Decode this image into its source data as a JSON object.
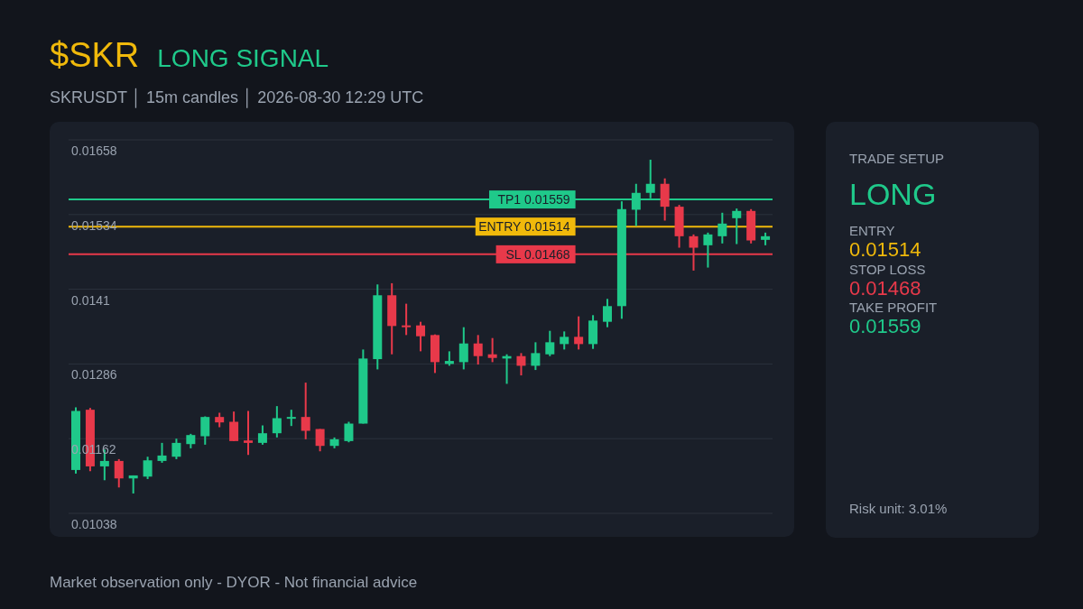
{
  "chart_data": [
    {
      "type": "candlestick",
      "title": "$SKR",
      "subtitle": "SKRUSDT │ 15m candles │ 2026-08-30 12:29 UTC",
      "annotations": [
        "LONG SIGNAL",
        "Market observation only - DYOR - Not financial advice"
      ],
      "categories": [
        null,
        null,
        null,
        null,
        null,
        null,
        null,
        null,
        null,
        null,
        null,
        null,
        null,
        null,
        null,
        null,
        null,
        null,
        null,
        null,
        null,
        null,
        null,
        null,
        null,
        null,
        null,
        null,
        null,
        null,
        null,
        null,
        null,
        null,
        null,
        null,
        null,
        null,
        null,
        null,
        null,
        null,
        null,
        null,
        null,
        null,
        null,
        null,
        null
      ],
      "ohlc": [
        [
          0.0111,
          0.01214,
          0.01104,
          0.01208
        ],
        [
          0.0121,
          0.01213,
          0.01108,
          0.01116
        ],
        [
          0.01116,
          0.01144,
          0.01093,
          0.01125
        ],
        [
          0.01125,
          0.01128,
          0.01081,
          0.01096
        ],
        [
          0.01096,
          0.01101,
          0.01071,
          0.01101
        ],
        [
          0.01099,
          0.01132,
          0.01095,
          0.01126
        ],
        [
          0.01125,
          0.01155,
          0.01122,
          0.01134
        ],
        [
          0.01132,
          0.01162,
          0.01128,
          0.01155
        ],
        [
          0.01153,
          0.0117,
          0.01146,
          0.01168
        ],
        [
          0.01166,
          0.01199,
          0.01152,
          0.01198
        ],
        [
          0.01198,
          0.01205,
          0.01181,
          0.01189
        ],
        [
          0.0119,
          0.01207,
          0.01158,
          0.01158
        ],
        [
          0.01159,
          0.01208,
          0.01135,
          0.01155
        ],
        [
          0.01155,
          0.01184,
          0.01152,
          0.01171
        ],
        [
          0.01171,
          0.01216,
          0.01164,
          0.01196
        ],
        [
          0.01195,
          0.0121,
          0.01183,
          0.01198
        ],
        [
          0.01198,
          0.01255,
          0.01161,
          0.01175
        ],
        [
          0.01178,
          0.01178,
          0.01141,
          0.0115
        ],
        [
          0.0115,
          0.01164,
          0.01146,
          0.01161
        ],
        [
          0.01158,
          0.0119,
          0.01156,
          0.01187
        ],
        [
          0.01187,
          0.0131,
          0.01187,
          0.01295
        ],
        [
          0.01294,
          0.01418,
          0.01277,
          0.014
        ],
        [
          0.014,
          0.0142,
          0.01302,
          0.01349
        ],
        [
          0.0135,
          0.01386,
          0.01334,
          0.01347
        ],
        [
          0.0135,
          0.01356,
          0.01307,
          0.01332
        ],
        [
          0.01334,
          0.01335,
          0.01271,
          0.01289
        ],
        [
          0.01286,
          0.01307,
          0.01283,
          0.01291
        ],
        [
          0.01289,
          0.01347,
          0.01277,
          0.0132
        ],
        [
          0.0132,
          0.01334,
          0.01285,
          0.01299
        ],
        [
          0.01302,
          0.01329,
          0.01289,
          0.01296
        ],
        [
          0.01295,
          0.01302,
          0.01253,
          0.01299
        ],
        [
          0.01299,
          0.01304,
          0.01267,
          0.01283
        ],
        [
          0.01283,
          0.01322,
          0.01276,
          0.01304
        ],
        [
          0.01302,
          0.01341,
          0.01299,
          0.01322
        ],
        [
          0.01319,
          0.0134,
          0.0131,
          0.01331
        ],
        [
          0.01331,
          0.01365,
          0.0131,
          0.01319
        ],
        [
          0.01319,
          0.01367,
          0.01311,
          0.01358
        ],
        [
          0.01356,
          0.01394,
          0.01347,
          0.01382
        ],
        [
          0.01382,
          0.01556,
          0.01361,
          0.01543
        ],
        [
          0.01542,
          0.01585,
          0.01515,
          0.0157
        ],
        [
          0.0157,
          0.01625,
          0.01561,
          0.01585
        ],
        [
          0.01585,
          0.01594,
          0.01524,
          0.01547
        ],
        [
          0.01547,
          0.0155,
          0.01479,
          0.01498
        ],
        [
          0.01498,
          0.01501,
          0.01441,
          0.01479
        ],
        [
          0.01483,
          0.01504,
          0.01446,
          0.01501
        ],
        [
          0.01498,
          0.01537,
          0.01486,
          0.01519
        ],
        [
          0.01528,
          0.01544,
          0.01485,
          0.0154
        ],
        [
          0.0154,
          0.01543,
          0.01486,
          0.01491
        ],
        [
          0.01492,
          0.01504,
          0.01483,
          0.01498
        ]
      ],
      "ylim": [
        0.01038,
        0.01658
      ],
      "yticks": [
        0.01038,
        0.01162,
        0.01286,
        0.0141,
        0.01534,
        0.01658
      ],
      "grid": "y",
      "tick_labels": "y",
      "ref_lines": [
        {
          "axis": "y",
          "value": 0.01559,
          "label": "TP1 0.01559",
          "color": "#1fc98a"
        },
        {
          "axis": "y",
          "value": 0.01514,
          "label": "ENTRY 0.01514",
          "color": "#f0b90b"
        },
        {
          "axis": "y",
          "value": 0.01468,
          "label": "SL 0.01468",
          "color": "#e8394a"
        }
      ]
    },
    {
      "type": "other",
      "title": "TRADE SETUP",
      "annotations": [
        "LONG",
        "ENTRY",
        "0.01514",
        "STOP LOSS",
        "0.01468",
        "TAKE PROFIT",
        "0.01559",
        "Risk unit: 3.01%"
      ]
    }
  ]
}
